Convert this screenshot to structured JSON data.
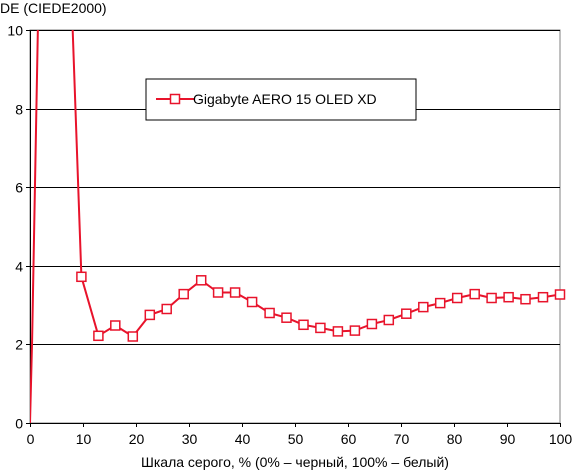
{
  "chart_data": {
    "type": "line",
    "title": "",
    "ylabel": "DE (CIEDE2000)",
    "xlabel": "Шкала серого, % (0% – черный, 100% – белый)",
    "xlim": [
      0,
      100
    ],
    "ylim": [
      0,
      10
    ],
    "x_ticks": [
      0,
      10,
      20,
      30,
      40,
      50,
      60,
      70,
      80,
      90,
      100
    ],
    "y_ticks": [
      0,
      2,
      4,
      6,
      8,
      10
    ],
    "grid": "horizontal",
    "legend_position": "top-center",
    "series": [
      {
        "name": "Gigabyte AERO 15 OLED XD",
        "color": "#e8132b",
        "marker": "square-open",
        "x": [
          0.0,
          0.4,
          1.5,
          8.0,
          9.7,
          12.9,
          16.1,
          19.4,
          22.6,
          25.8,
          29.0,
          32.3,
          35.5,
          38.7,
          41.9,
          45.2,
          48.4,
          51.6,
          54.8,
          58.1,
          61.3,
          64.5,
          67.7,
          71.0,
          74.2,
          77.4,
          80.6,
          83.9,
          87.1,
          90.3,
          93.5,
          96.8,
          100.0
        ],
        "y": [
          0.0,
          2.1,
          10.2,
          10.2,
          3.72,
          2.22,
          2.48,
          2.2,
          2.75,
          2.9,
          3.28,
          3.63,
          3.32,
          3.32,
          3.08,
          2.8,
          2.68,
          2.5,
          2.42,
          2.33,
          2.35,
          2.52,
          2.62,
          2.78,
          2.95,
          3.05,
          3.18,
          3.28,
          3.18,
          3.2,
          3.15,
          3.2,
          3.27
        ],
        "markers_from_index": 4
      }
    ]
  }
}
